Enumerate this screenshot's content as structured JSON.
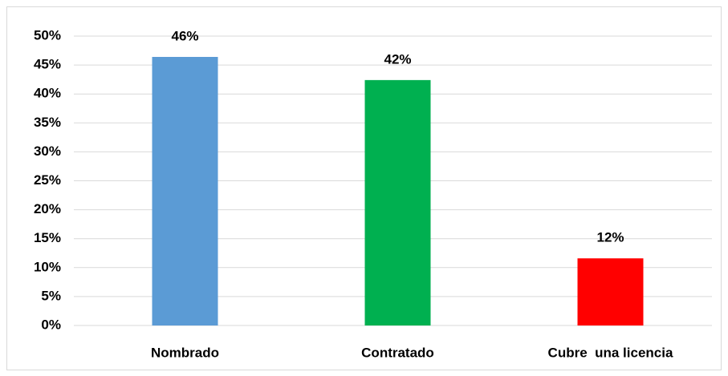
{
  "chart_data": {
    "type": "bar",
    "categories": [
      "Nombrado",
      "Contratado",
      "Cubre  una licencia"
    ],
    "values": [
      46.4,
      42.4,
      11.6
    ],
    "value_labels": [
      "46%",
      "42%",
      "12%"
    ],
    "colors": [
      "#5b9bd5",
      "#00b050",
      "#ff0000"
    ],
    "ylim": [
      0,
      50
    ],
    "yticks": [
      {
        "value": 0,
        "label": "0%"
      },
      {
        "value": 5,
        "label": "5%"
      },
      {
        "value": 10,
        "label": "10%"
      },
      {
        "value": 15,
        "label": "15%"
      },
      {
        "value": 20,
        "label": "20%"
      },
      {
        "value": 25,
        "label": "25%"
      },
      {
        "value": 30,
        "label": "30%"
      },
      {
        "value": 35,
        "label": "35%"
      },
      {
        "value": 40,
        "label": "40%"
      },
      {
        "value": 45,
        "label": "45%"
      },
      {
        "value": 50,
        "label": "50%"
      }
    ],
    "grid": true
  }
}
